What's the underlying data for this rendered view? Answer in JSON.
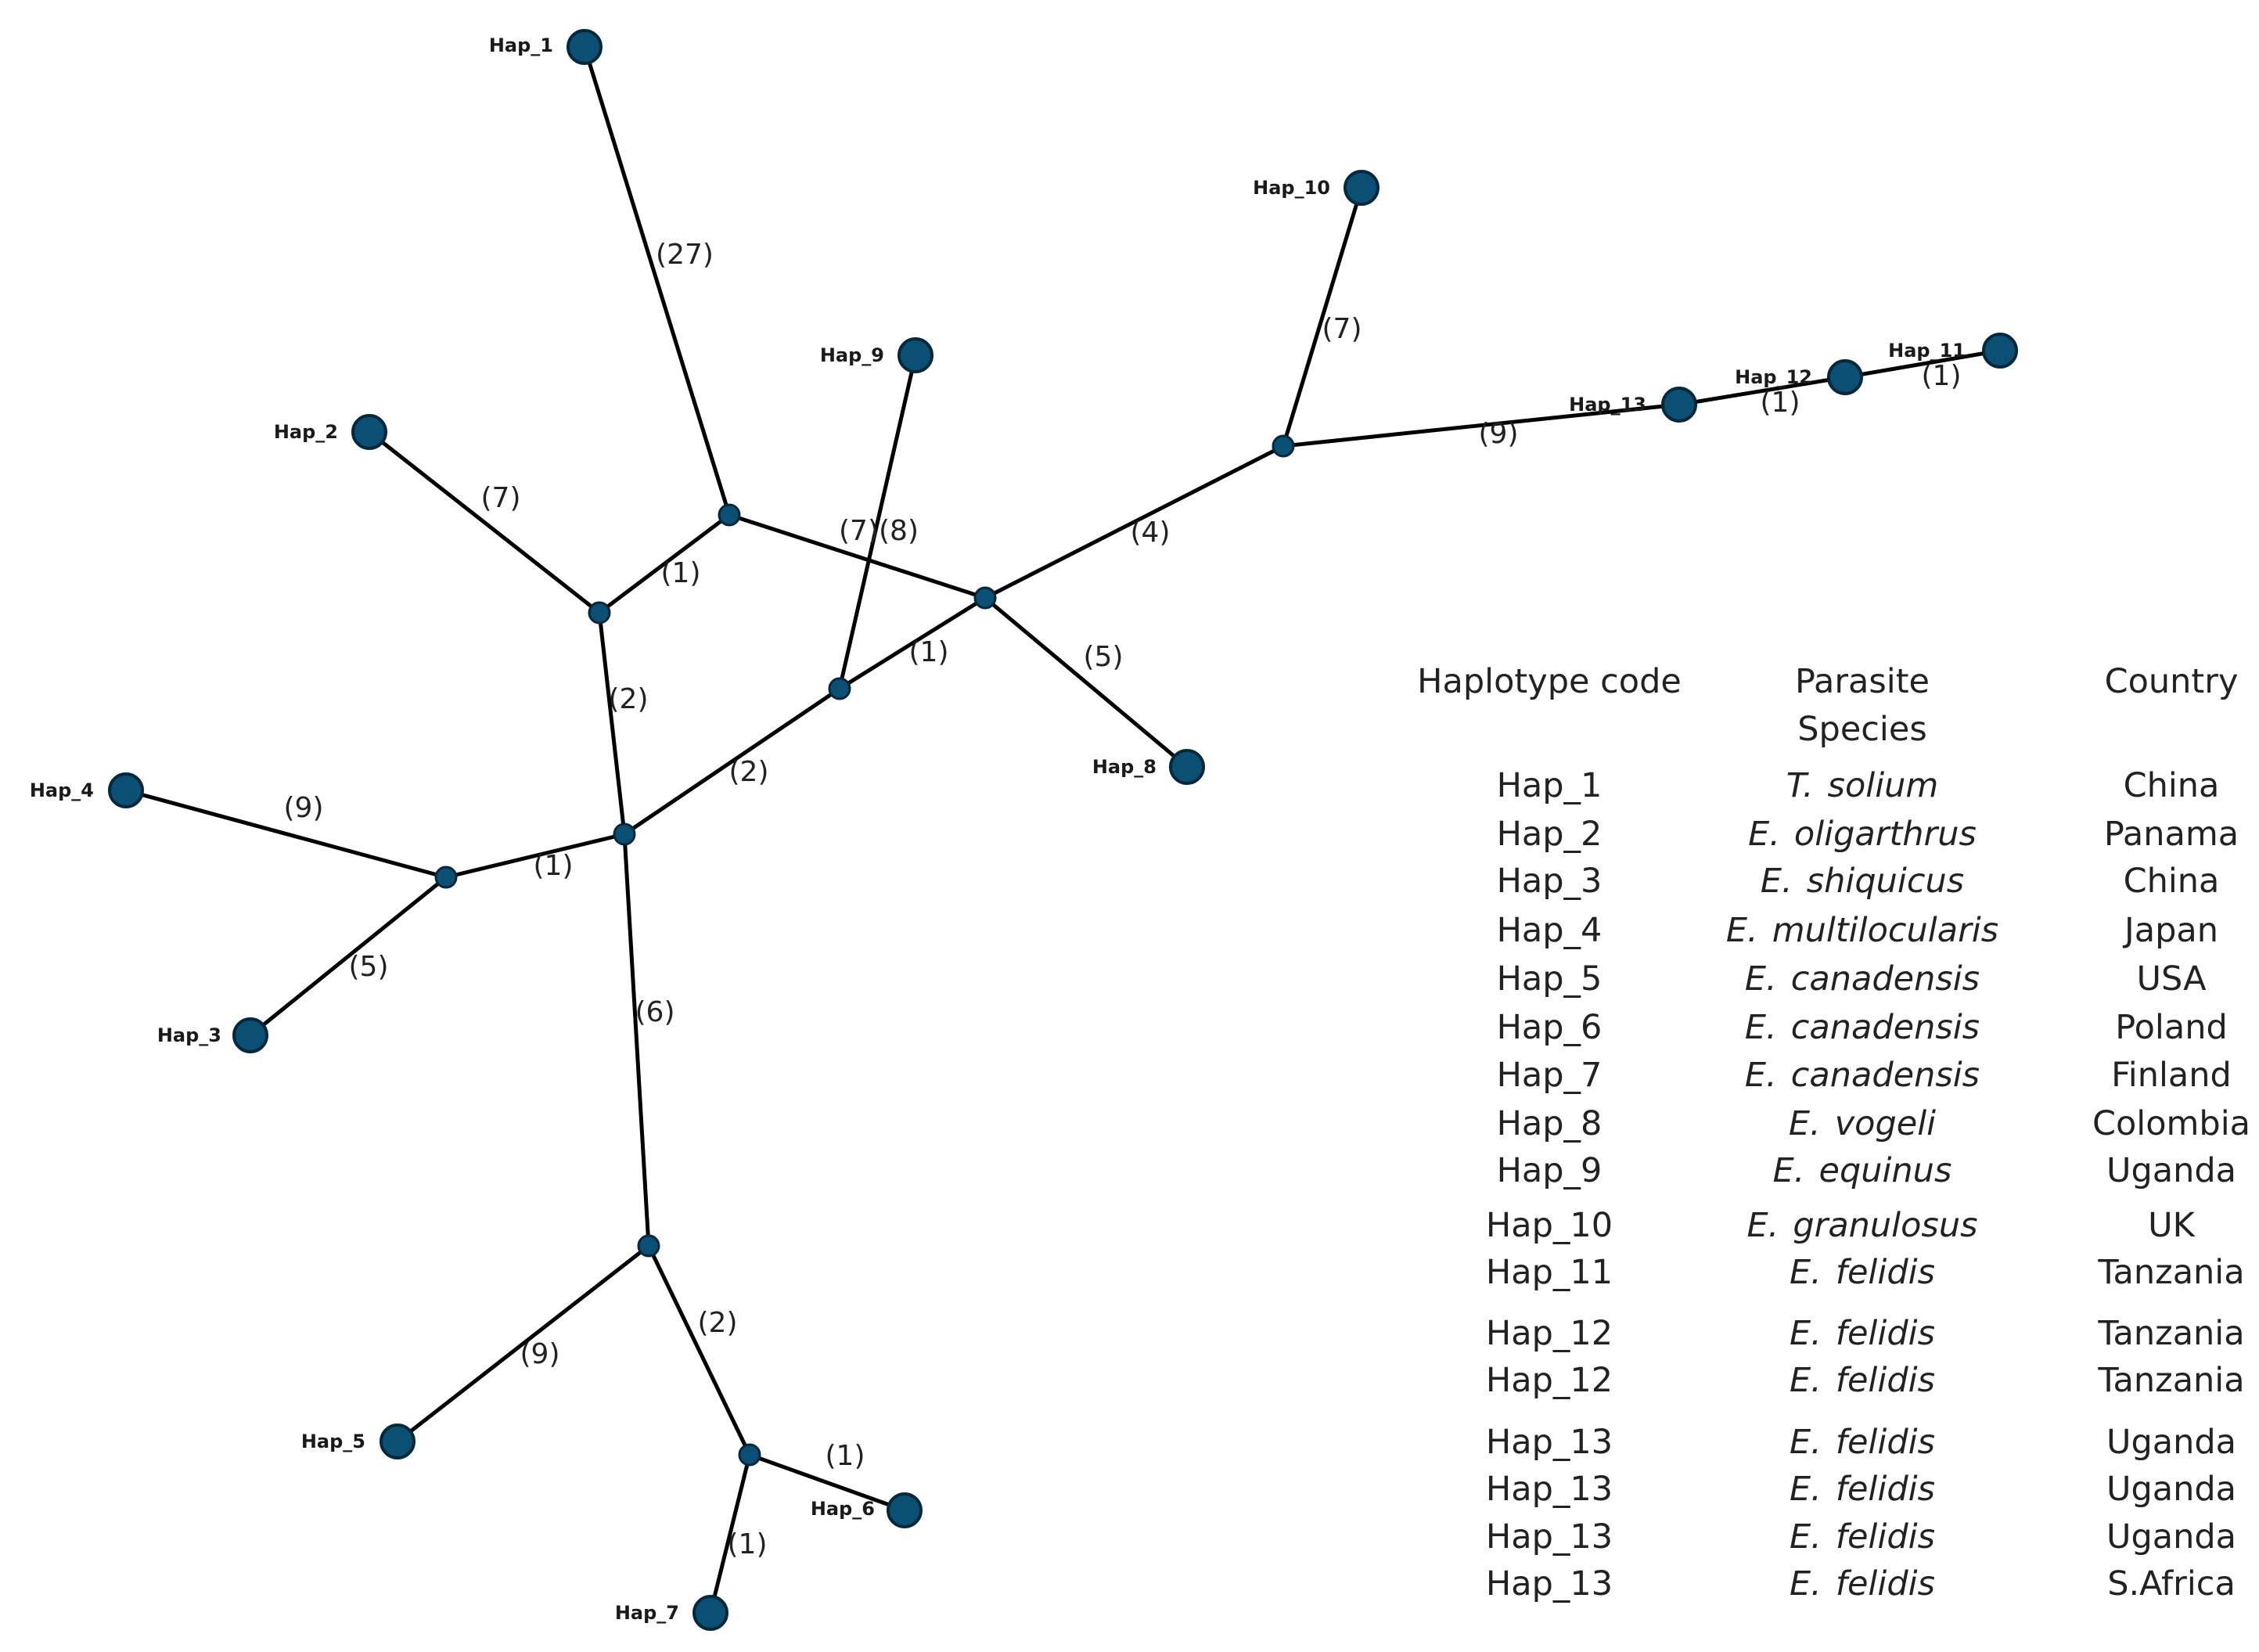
{
  "network": {
    "haplotypes": [
      {
        "id": "hap1",
        "label": "Hap_1"
      },
      {
        "id": "hap2",
        "label": "Hap_2"
      },
      {
        "id": "hap3",
        "label": "Hap_3"
      },
      {
        "id": "hap4",
        "label": "Hap_4"
      },
      {
        "id": "hap5",
        "label": "Hap_5"
      },
      {
        "id": "hap6",
        "label": "Hap_6"
      },
      {
        "id": "hap7",
        "label": "Hap_7"
      },
      {
        "id": "hap8",
        "label": "Hap_8"
      },
      {
        "id": "hap9",
        "label": "Hap_9"
      },
      {
        "id": "hap10",
        "label": "Hap_10"
      },
      {
        "id": "hap11",
        "label": "Hap_11"
      },
      {
        "id": "hap12",
        "label": "Hap_12"
      },
      {
        "id": "hap13",
        "label": "Hap_13"
      }
    ],
    "median_vectors": [
      "mA",
      "mB",
      "mC",
      "mD",
      "mE",
      "mF",
      "mG",
      "mH",
      "mI",
      "mJ"
    ],
    "links": [
      {
        "from": "hap1",
        "to": "mA",
        "steps": "(27)"
      },
      {
        "from": "mA",
        "to": "mB",
        "steps": "(1)"
      },
      {
        "from": "hap2",
        "to": "mB",
        "steps": "(7)"
      },
      {
        "from": "mA",
        "to": "mD",
        "steps": "(7)(8)"
      },
      {
        "from": "mB",
        "to": "mC",
        "steps": "(2)"
      },
      {
        "from": "hap9",
        "to": "mE",
        "steps": ""
      },
      {
        "from": "mE",
        "to": "mD",
        "steps": "(1)"
      },
      {
        "from": "mC",
        "to": "mE",
        "steps": "(2)"
      },
      {
        "from": "mD",
        "to": "hap8",
        "steps": "(5)"
      },
      {
        "from": "mD",
        "to": "mF",
        "steps": "(4)"
      },
      {
        "from": "hap10",
        "to": "mF",
        "steps": "(7)"
      },
      {
        "from": "mF",
        "to": "hap13",
        "steps": "(9)"
      },
      {
        "from": "hap13",
        "to": "hap12",
        "steps": "(1)"
      },
      {
        "from": "hap12",
        "to": "hap11",
        "steps": "(1)"
      },
      {
        "from": "hap4",
        "to": "mG",
        "steps": "(9)"
      },
      {
        "from": "mG",
        "to": "mC",
        "steps": "(1)"
      },
      {
        "from": "mG",
        "to": "hap3",
        "steps": "(5)"
      },
      {
        "from": "mC",
        "to": "mH",
        "steps": "(6)"
      },
      {
        "from": "mH",
        "to": "hap5",
        "steps": "(9)"
      },
      {
        "from": "mH",
        "to": "mI",
        "steps": "(2)"
      },
      {
        "from": "mI",
        "to": "hap6",
        "steps": "(1)"
      },
      {
        "from": "mI",
        "to": "hap7",
        "steps": "(1)"
      }
    ]
  },
  "table": {
    "headers": {
      "code": "Haplotype code",
      "species_line1": "Parasite",
      "species_line2": "Species",
      "country": "Country"
    },
    "rows": [
      {
        "code": "Hap_1",
        "genus": "T.",
        "species": "solium",
        "country": "China"
      },
      {
        "code": "Hap_2",
        "genus": "E.",
        "species": "oligarthrus",
        "country": "Panama"
      },
      {
        "code": "Hap_3",
        "genus": "E.",
        "species": "shiquicus",
        "country": "China"
      },
      {
        "code": "Hap_4",
        "genus": "E.",
        "species": "multilocularis",
        "country": "Japan"
      },
      {
        "code": "Hap_5",
        "genus": "E.",
        "species": "canadensis",
        "country": "USA"
      },
      {
        "code": "Hap_6",
        "genus": "E.",
        "species": "canadensis",
        "country": "Poland"
      },
      {
        "code": "Hap_7",
        "genus": "E.",
        "species": "canadensis",
        "country": "Finland"
      },
      {
        "code": "Hap_8",
        "genus": "E.",
        "species": "vogeli",
        "country": "Colombia"
      },
      {
        "code": "Hap_9",
        "genus": "E.",
        "species": "equinus",
        "country": "Uganda"
      },
      {
        "code": "Hap_10",
        "genus": "E.",
        "species": "granulosus",
        "country": "UK"
      },
      {
        "code": "Hap_11",
        "genus": "E.",
        "species": "felidis",
        "country": "Tanzania"
      },
      {
        "code": "Hap_12",
        "genus": "E.",
        "species": "felidis",
        "country": "Tanzania"
      },
      {
        "code": "Hap_12",
        "genus": "E.",
        "species": "felidis",
        "country": "Tanzania"
      },
      {
        "code": "Hap_13",
        "genus": "E.",
        "species": "felidis",
        "country": "Uganda"
      },
      {
        "code": "Hap_13",
        "genus": "E.",
        "species": "felidis",
        "country": "Uganda"
      },
      {
        "code": "Hap_13",
        "genus": "E.",
        "species": "felidis",
        "country": "Uganda"
      },
      {
        "code": "Hap_13",
        "genus": "E.",
        "species": "felidis",
        "country": "S.Africa"
      }
    ]
  }
}
